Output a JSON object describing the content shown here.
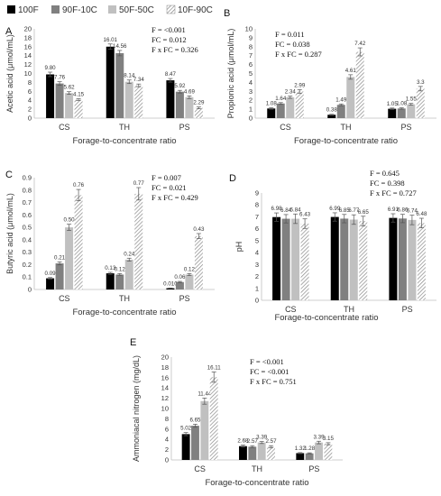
{
  "legend": [
    {
      "name": "100F",
      "style": "black"
    },
    {
      "name": "90F-10C",
      "style": "dark"
    },
    {
      "name": "50F-50C",
      "style": "light"
    },
    {
      "name": "10F-90C",
      "style": "hatch"
    }
  ],
  "colors": {
    "black": "#000000",
    "dark": "#808080",
    "light": "#c0c0c0",
    "hatch": "#888888",
    "axis": "#bfbfbf"
  },
  "chart_data": [
    {
      "panel": "A",
      "type": "bar",
      "ylabel": "Acetic acid (μmol/mL)",
      "xlabel": "Forage-to-concentrate ratio",
      "categories": [
        "CS",
        "TH",
        "PS"
      ],
      "ylim": [
        0,
        20
      ],
      "yticks": [
        0,
        2,
        4,
        6,
        8,
        10,
        12,
        14,
        16,
        18,
        20
      ],
      "series": [
        {
          "name": "100F",
          "values": [
            9.8,
            16.01,
            8.47
          ],
          "labels": [
            "9.80",
            "16.01",
            "8.47"
          ],
          "errors": [
            0.5,
            0.6,
            0.4
          ]
        },
        {
          "name": "90F-10C",
          "values": [
            7.76,
            14.56,
            5.92
          ],
          "labels": [
            "7.76",
            "14.56",
            "5.92"
          ],
          "errors": [
            0.4,
            0.6,
            0.3
          ]
        },
        {
          "name": "50F-50C",
          "values": [
            5.62,
            8.14,
            4.69
          ],
          "labels": [
            "5.62",
            "8.14",
            "4.69"
          ],
          "errors": [
            0.3,
            0.4,
            0.3
          ]
        },
        {
          "name": "10F-90C",
          "values": [
            4.15,
            7.34,
            2.29
          ],
          "labels": [
            "4.15",
            "7.34",
            "2.29"
          ],
          "errors": [
            0.2,
            0.3,
            0.2
          ]
        }
      ],
      "stats": [
        "F = <0.001",
        "FC = 0.012",
        "F x FC = 0.326"
      ]
    },
    {
      "panel": "B",
      "type": "bar",
      "ylabel": "Propionic acid (μmol/mL)",
      "xlabel": "Forage-to-concentrate ratio",
      "categories": [
        "CS",
        "TH",
        "PS"
      ],
      "ylim": [
        0,
        10
      ],
      "yticks": [
        0,
        1,
        2,
        3,
        4,
        5,
        6,
        7,
        8,
        9,
        10
      ],
      "series": [
        {
          "name": "100F",
          "values": [
            1.08,
            0.38,
            1.05
          ],
          "labels": [
            "1.08",
            "0.38",
            "1.05"
          ],
          "errors": [
            0.08,
            0.05,
            0.08
          ]
        },
        {
          "name": "90F-10C",
          "values": [
            1.64,
            1.49,
            1.08
          ],
          "labels": [
            "1.64",
            "1.49",
            "1.08"
          ],
          "errors": [
            0.1,
            0.1,
            0.08
          ]
        },
        {
          "name": "50F-50C",
          "values": [
            2.34,
            4.61,
            1.55
          ],
          "labels": [
            "2.34",
            "4.61",
            "1.55"
          ],
          "errors": [
            0.12,
            0.25,
            0.1
          ]
        },
        {
          "name": "10F-90C",
          "values": [
            2.99,
            7.42,
            3.3
          ],
          "labels": [
            "2.99",
            "7.42",
            "3.3"
          ],
          "errors": [
            0.2,
            0.45,
            0.25
          ]
        }
      ],
      "stats": [
        "F = 0.011",
        "FC = 0.038",
        "F x FC = 0.287"
      ]
    },
    {
      "panel": "C",
      "type": "bar",
      "ylabel": "Butyric acid (μmol/mL)",
      "xlabel": "Forage-to-concentrate ratio",
      "categories": [
        "CS",
        "TH",
        "PS"
      ],
      "ylim": [
        0,
        0.9
      ],
      "yticks": [
        0,
        0.1,
        0.2,
        0.3,
        0.4,
        0.5,
        0.6,
        0.7,
        0.8,
        0.9
      ],
      "series": [
        {
          "name": "100F",
          "values": [
            0.09,
            0.13,
            0.01
          ],
          "labels": [
            "0.09",
            "0.13",
            "0.010"
          ],
          "errors": [
            0.006,
            0.008,
            0.002
          ]
        },
        {
          "name": "90F-10C",
          "values": [
            0.21,
            0.12,
            0.06
          ],
          "labels": [
            "0.21",
            "0.12",
            "0.06"
          ],
          "errors": [
            0.012,
            0.008,
            0.005
          ]
        },
        {
          "name": "50F-50C",
          "values": [
            0.5,
            0.24,
            0.12
          ],
          "labels": [
            "0.50",
            "0.24",
            "0.12"
          ],
          "errors": [
            0.025,
            0.012,
            0.008
          ]
        },
        {
          "name": "10F-90C",
          "values": [
            0.76,
            0.77,
            0.43
          ],
          "labels": [
            "0.76",
            "0.77",
            "0.43"
          ],
          "errors": [
            0.045,
            0.05,
            0.02
          ]
        }
      ],
      "stats": [
        "F = 0.007",
        "FC = 0.021",
        "F x FC = 0.429"
      ]
    },
    {
      "panel": "D",
      "type": "bar",
      "ylabel": "pH",
      "xlabel": "Forage-to-concentrate ratio",
      "categories": [
        "CS",
        "TH",
        "PS"
      ],
      "ylim": [
        0,
        9
      ],
      "yticks": [
        0,
        1,
        2,
        3,
        4,
        5,
        6,
        7,
        8,
        9
      ],
      "series": [
        {
          "name": "100F",
          "values": [
            6.98,
            6.99,
            6.91
          ],
          "labels": [
            "6.98",
            "6.99",
            "6.91"
          ],
          "errors": [
            0.35,
            0.35,
            0.35
          ]
        },
        {
          "name": "90F-10C",
          "values": [
            6.84,
            6.85,
            6.86
          ],
          "labels": [
            "6.84",
            "6.85",
            "6.86"
          ],
          "errors": [
            0.35,
            0.35,
            0.35
          ]
        },
        {
          "name": "50F-50C",
          "values": [
            6.84,
            6.77,
            6.74
          ],
          "labels": [
            "6.84",
            "6.77",
            "6.74"
          ],
          "errors": [
            0.4,
            0.4,
            0.4
          ]
        },
        {
          "name": "10F-90C",
          "values": [
            6.43,
            6.65,
            6.48
          ],
          "labels": [
            "6.43",
            "6.65",
            "6.48"
          ],
          "errors": [
            0.4,
            0.4,
            0.4
          ]
        }
      ],
      "stats": [
        "F = 0.645",
        "FC = 0.398",
        "F x FC = 0.727"
      ]
    },
    {
      "panel": "E",
      "type": "bar",
      "ylabel": "Ammoniacal nitrogen (mg/dL)",
      "xlabel": "Forage-to-concentrate ratio",
      "categories": [
        "CS",
        "TH",
        "PS"
      ],
      "ylim": [
        0,
        20
      ],
      "yticks": [
        0,
        2,
        4,
        6,
        8,
        10,
        12,
        14,
        16,
        18,
        20
      ],
      "series": [
        {
          "name": "100F",
          "values": [
            5.02,
            2.68,
            1.32
          ],
          "labels": [
            "5.02",
            "2.68",
            "1.32"
          ],
          "errors": [
            0.3,
            0.2,
            0.1
          ]
        },
        {
          "name": "90F-10C",
          "values": [
            6.65,
            2.57,
            1.28
          ],
          "labels": [
            "6.65",
            "2.57",
            "1.28"
          ],
          "errors": [
            0.3,
            0.2,
            0.1
          ]
        },
        {
          "name": "50F-50C",
          "values": [
            11.44,
            3.39,
            3.39
          ],
          "labels": [
            "11.44",
            "3.39",
            "3.39"
          ],
          "errors": [
            0.6,
            0.2,
            0.25
          ]
        },
        {
          "name": "10F-90C",
          "values": [
            16.11,
            2.57,
            3.15
          ],
          "labels": [
            "16.11",
            "2.57",
            "3.15"
          ],
          "errors": [
            1.0,
            0.2,
            0.2
          ]
        }
      ],
      "stats": [
        "F = <0.001",
        "FC = <0.001",
        "F x FC = 0.751"
      ]
    }
  ]
}
